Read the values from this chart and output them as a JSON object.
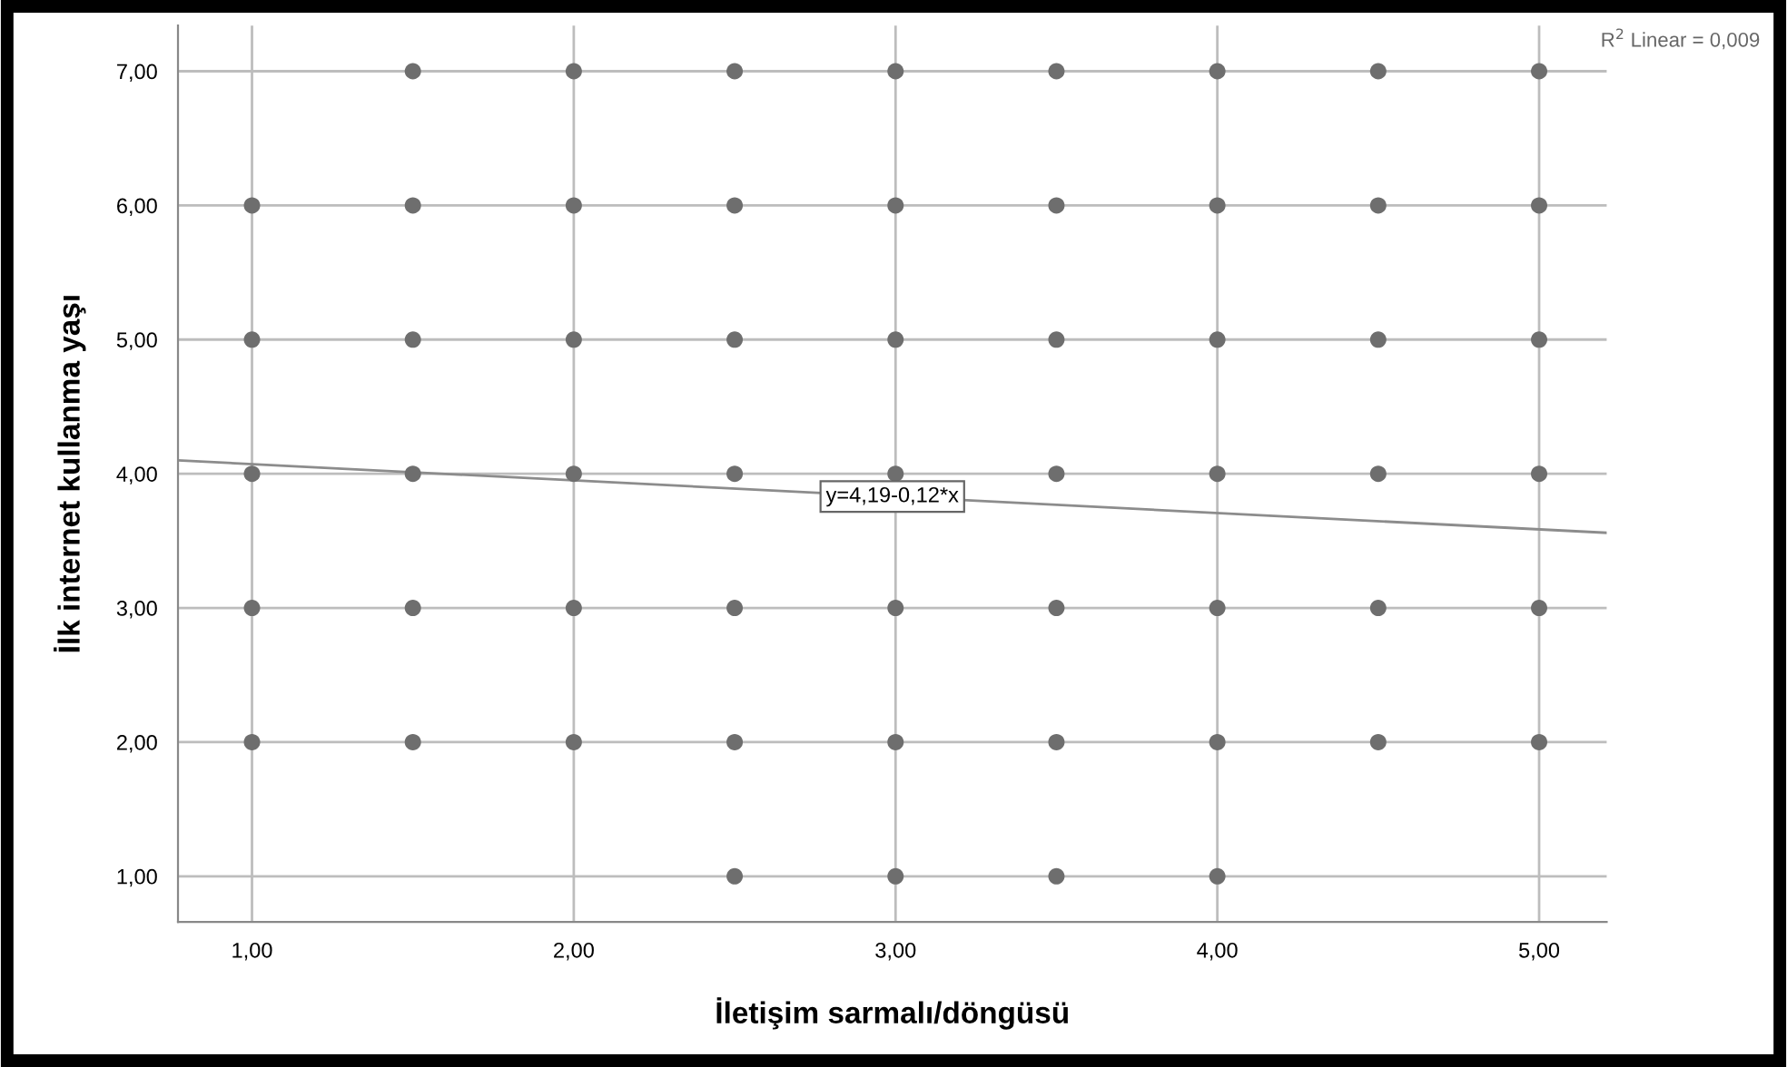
{
  "chart_data": {
    "type": "scatter",
    "xlabel": "İletişim sarmalı/döngüsü",
    "ylabel": "İlk internet kullanma yaşı",
    "xlim": [
      0.77,
      5.21
    ],
    "ylim": [
      0.66,
      7.34
    ],
    "xticks": [
      {
        "value": 1,
        "label": "1,00"
      },
      {
        "value": 2,
        "label": "2,00"
      },
      {
        "value": 3,
        "label": "3,00"
      },
      {
        "value": 4,
        "label": "4,00"
      },
      {
        "value": 5,
        "label": "5,00"
      }
    ],
    "yticks": [
      {
        "value": 1,
        "label": "1,00"
      },
      {
        "value": 2,
        "label": "2,00"
      },
      {
        "value": 3,
        "label": "3,00"
      },
      {
        "value": 4,
        "label": "4,00"
      },
      {
        "value": 5,
        "label": "5,00"
      },
      {
        "value": 6,
        "label": "6,00"
      },
      {
        "value": 7,
        "label": "7,00"
      }
    ],
    "grid": true,
    "legend": false,
    "marker": "circle",
    "series": [
      {
        "color": "#6e6e6e",
        "x": [
          1,
          1,
          1,
          1,
          1,
          1.5,
          1.5,
          1.5,
          1.5,
          1.5,
          1.5,
          2,
          2,
          2,
          2,
          2,
          2,
          2.5,
          2.5,
          2.5,
          2.5,
          2.5,
          2.5,
          2.5,
          3,
          3,
          3,
          3,
          3,
          3,
          3,
          3.5,
          3.5,
          3.5,
          3.5,
          3.5,
          3.5,
          3.5,
          4,
          4,
          4,
          4,
          4,
          4,
          4,
          4.5,
          4.5,
          4.5,
          4.5,
          4.5,
          4.5,
          5,
          5,
          5,
          5,
          5,
          5
        ],
        "values": [
          2,
          3,
          4,
          5,
          6,
          2,
          3,
          4,
          5,
          6,
          7,
          2,
          3,
          4,
          5,
          6,
          7,
          1,
          2,
          3,
          4,
          5,
          6,
          7,
          1,
          2,
          3,
          4,
          5,
          6,
          7,
          1,
          2,
          3,
          4,
          5,
          6,
          7,
          1,
          2,
          3,
          4,
          5,
          6,
          7,
          2,
          3,
          4,
          5,
          6,
          7,
          2,
          3,
          4,
          5,
          6,
          7
        ]
      },
      {
        "type": "line",
        "color": "#8c8c8c",
        "x": [
          0.77,
          5.21
        ],
        "values": [
          4.1,
          3.56
        ],
        "marker": "none",
        "line_style": "solid"
      }
    ],
    "annotations": [
      {
        "text": "y=4,19-0,12*x",
        "x": 2.99,
        "y": 3.83
      },
      "R$^{2}$ Linear = 0,009"
    ]
  }
}
